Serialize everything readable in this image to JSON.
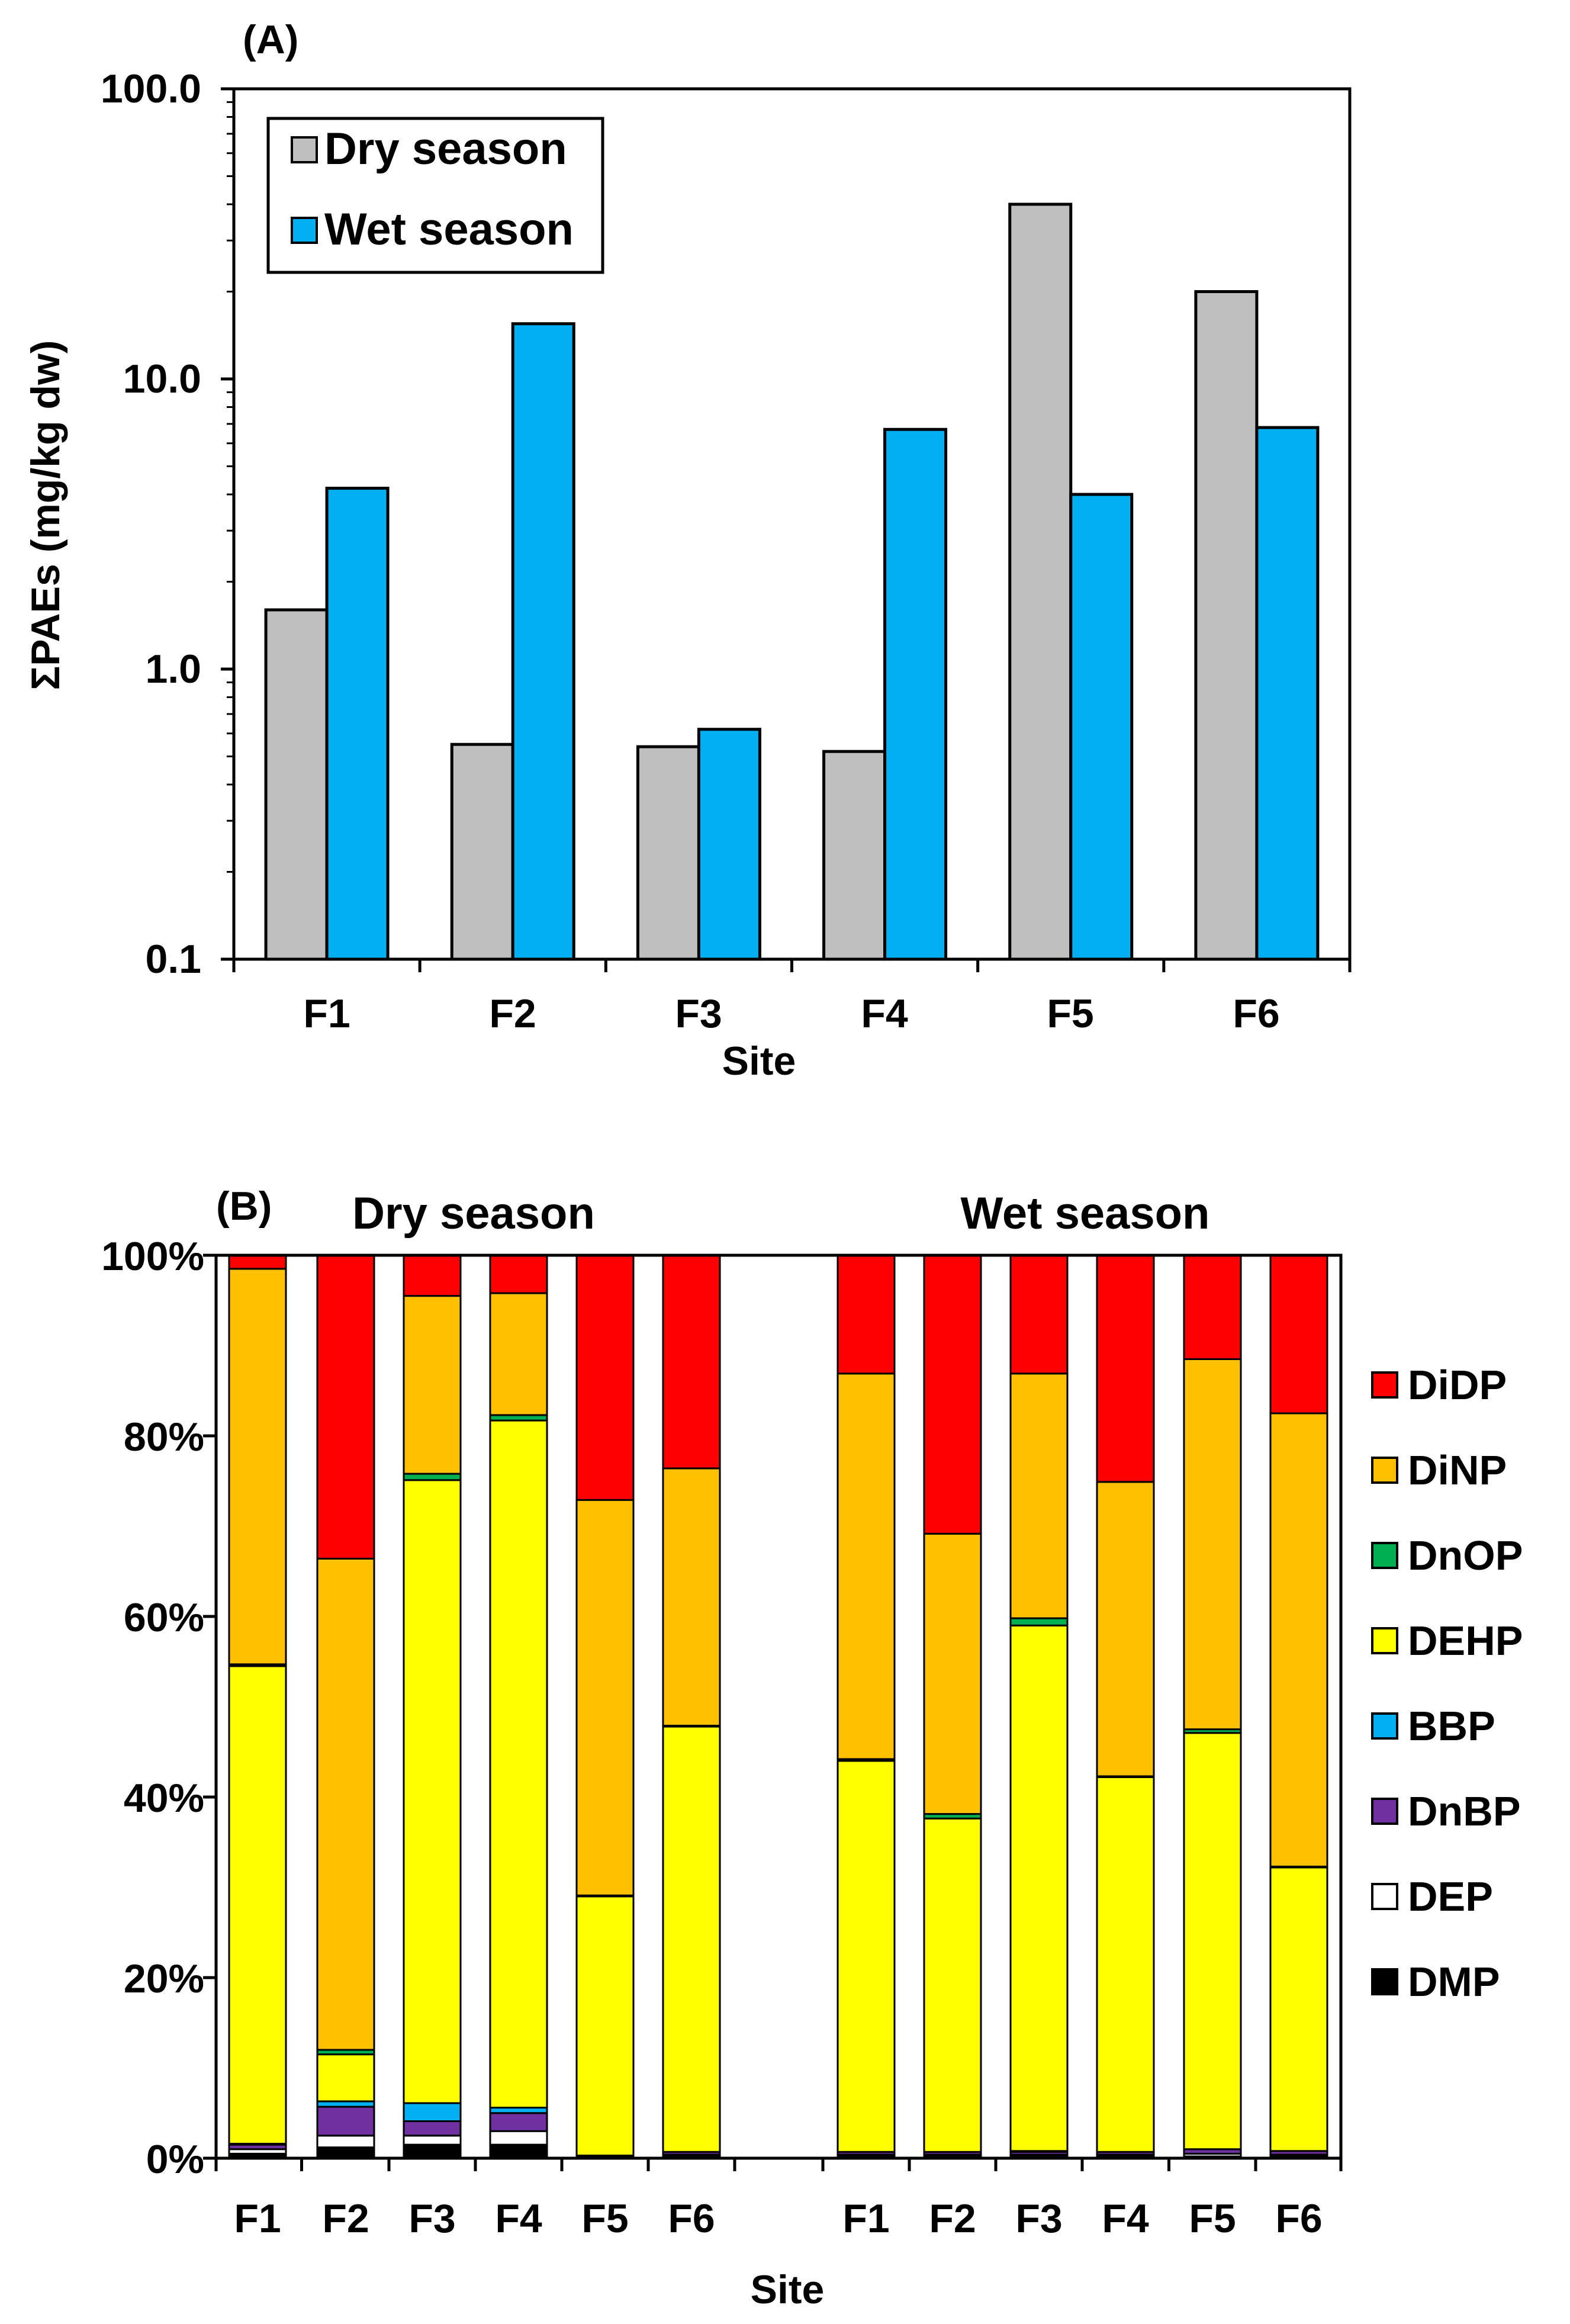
{
  "chart_data": [
    {
      "type": "bar",
      "panel_label": "(A)",
      "scale": "log",
      "ylabel": "ΣPAEs  (mg/kg dw)",
      "xlabel": "Site",
      "ylim": [
        0.1,
        100
      ],
      "yticks": [
        "0.1",
        "1.0",
        "10.0",
        "100.0"
      ],
      "categories": [
        "F1",
        "F2",
        "F3",
        "F4",
        "F5",
        "F6"
      ],
      "legend_position": "top-left",
      "series": [
        {
          "name": "Dry season",
          "color": "#bfbfbf",
          "values": [
            1.6,
            0.55,
            0.54,
            0.52,
            40,
            20
          ]
        },
        {
          "name": "Wet season",
          "color": "#00b0f0",
          "values": [
            4.2,
            15.5,
            0.62,
            6.7,
            4.0,
            6.8
          ]
        }
      ]
    },
    {
      "type": "stacked-bar",
      "panel_label": "(B)",
      "xlabel": "Site",
      "ylim": [
        0,
        100
      ],
      "yticks": [
        "0%",
        "20%",
        "40%",
        "60%",
        "80%",
        "100%"
      ],
      "groups": [
        {
          "title": "Dry season",
          "categories": [
            "F1",
            "F2",
            "F3",
            "F4",
            "F5",
            "F6"
          ]
        },
        {
          "title": "Wet season",
          "categories": [
            "F1",
            "F2",
            "F3",
            "F4",
            "F5",
            "F6"
          ]
        }
      ],
      "legend_position": "right",
      "series": [
        {
          "name": "DMP",
          "color": "#000000",
          "values": [
            0.5,
            1.2,
            1.5,
            1.5,
            0.1,
            0.2,
            0.2,
            0.2,
            0.2,
            0.2,
            0.2,
            0.2
          ]
        },
        {
          "name": "DEP",
          "color": "#ffffff",
          "values": [
            0.5,
            1.3,
            1.0,
            1.5,
            0.1,
            0.2,
            0.2,
            0.2,
            0.2,
            0.2,
            0.3,
            0.2
          ]
        },
        {
          "name": "DnBP",
          "color": "#7030a0",
          "values": [
            0.5,
            3.2,
            1.6,
            2.0,
            0.1,
            0.3,
            0.3,
            0.3,
            0.3,
            0.3,
            0.5,
            0.4
          ]
        },
        {
          "name": "BBP",
          "color": "#00b0f0",
          "values": [
            0.1,
            0.6,
            2.0,
            0.6,
            0.0,
            0.0,
            0.0,
            0.0,
            0.1,
            0.0,
            0.0,
            0.0
          ]
        },
        {
          "name": "DEHP",
          "color": "#ffff00",
          "values": [
            52.9,
            5.2,
            69.0,
            76.1,
            28.7,
            47.1,
            43.3,
            37.0,
            58.2,
            41.5,
            46.1,
            31.4
          ]
        },
        {
          "name": "DnOP",
          "color": "#00b050",
          "values": [
            0.2,
            0.5,
            0.7,
            0.6,
            0.1,
            0.1,
            0.2,
            0.5,
            0.8,
            0.1,
            0.4,
            0.1
          ]
        },
        {
          "name": "DiNP",
          "color": "#ffc000",
          "values": [
            43.8,
            54.4,
            19.7,
            13.5,
            43.8,
            28.5,
            42.7,
            31.1,
            27.1,
            32.6,
            41.0,
            50.2
          ]
        },
        {
          "name": "DiDP",
          "color": "#ff0000",
          "values": [
            1.5,
            33.6,
            4.5,
            4.2,
            27.1,
            23.6,
            13.1,
            30.9,
            13.1,
            25.1,
            11.5,
            17.5
          ]
        }
      ]
    }
  ]
}
